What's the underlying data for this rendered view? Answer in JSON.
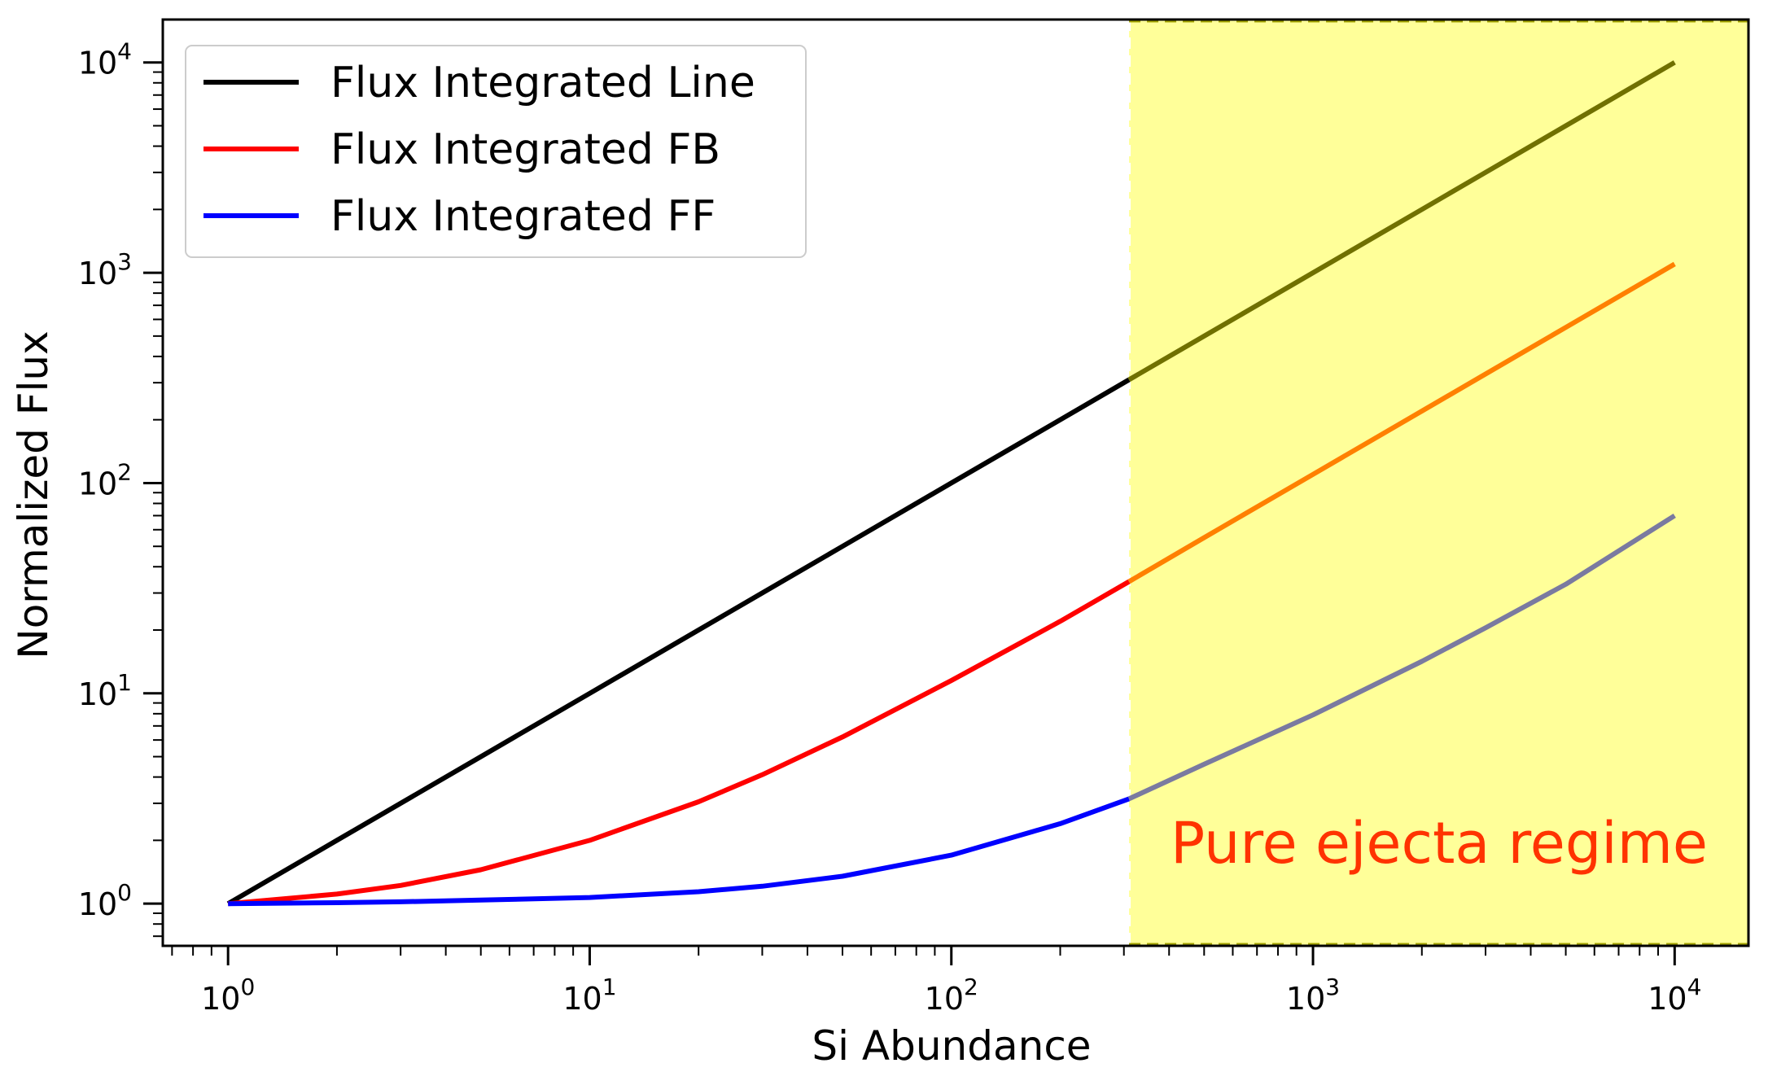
{
  "chart_data": {
    "type": "line",
    "title": "",
    "xlabel": "Si Abundance",
    "ylabel": "Normalized Flux",
    "xscale": "log",
    "yscale": "log",
    "xlim": [
      0.66,
      16000
    ],
    "ylim": [
      0.63,
      16000
    ],
    "grid": false,
    "legend_position": "top-left",
    "xticks": [
      {
        "value": 1,
        "base": "10",
        "exp": "0"
      },
      {
        "value": 10,
        "base": "10",
        "exp": "1"
      },
      {
        "value": 100,
        "base": "10",
        "exp": "2"
      },
      {
        "value": 1000,
        "base": "10",
        "exp": "3"
      },
      {
        "value": 10000,
        "base": "10",
        "exp": "4"
      }
    ],
    "yticks": [
      {
        "value": 1,
        "base": "10",
        "exp": "0"
      },
      {
        "value": 10,
        "base": "10",
        "exp": "1"
      },
      {
        "value": 100,
        "base": "10",
        "exp": "2"
      },
      {
        "value": 1000,
        "base": "10",
        "exp": "3"
      },
      {
        "value": 10000,
        "base": "10",
        "exp": "4"
      }
    ],
    "shaded_region": {
      "x_range": [
        310,
        16000
      ],
      "color": "#ffff99",
      "label": "Pure ejecta regime",
      "label_color": "#ff3300"
    },
    "series": [
      {
        "name": "Flux Integrated Line",
        "color": "#000000",
        "shaded_color": "#707000",
        "x": [
          1,
          2,
          3,
          5,
          10,
          20,
          30,
          50,
          100,
          200,
          310,
          500,
          1000,
          2000,
          3000,
          5000,
          10000
        ],
        "y": [
          1,
          2,
          3,
          5,
          10,
          20,
          30,
          50,
          100,
          200,
          310,
          500,
          1000,
          2000,
          3000,
          5000,
          10000
        ]
      },
      {
        "name": "Flux Integrated FB",
        "color": "#ff0000",
        "shaded_color": "#ff8000",
        "x": [
          1,
          2,
          3,
          5,
          10,
          20,
          30,
          50,
          100,
          200,
          310,
          500,
          1000,
          2000,
          3000,
          5000,
          10000
        ],
        "y": [
          1,
          1.11,
          1.22,
          1.45,
          2.0,
          3.05,
          4.1,
          6.2,
          11.5,
          22,
          34,
          55,
          110,
          220,
          330,
          550,
          1100
        ]
      },
      {
        "name": "Flux Integrated FF",
        "color": "#0000ff",
        "shaded_color": "#7a7aa0",
        "x": [
          1,
          2,
          3,
          5,
          10,
          20,
          30,
          50,
          100,
          200,
          310,
          500,
          1000,
          2000,
          3000,
          5000,
          10000
        ],
        "y": [
          1,
          1.01,
          1.02,
          1.04,
          1.07,
          1.14,
          1.21,
          1.35,
          1.7,
          2.4,
          3.15,
          4.6,
          7.9,
          14.2,
          20.5,
          33,
          70
        ]
      }
    ]
  }
}
